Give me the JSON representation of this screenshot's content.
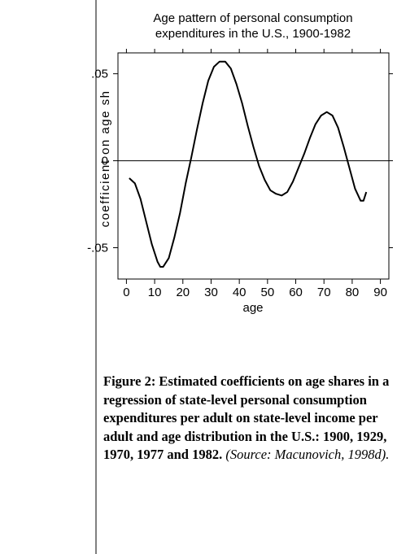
{
  "chart_data": {
    "type": "line",
    "title": [
      "Age pattern of personal consumption",
      "expenditures in the U.S., 1900-1982"
    ],
    "xlabel": "age",
    "ylabel": "coefficient on age sh",
    "xlim": [
      -3,
      93
    ],
    "xticks": [
      0,
      10,
      20,
      30,
      40,
      50,
      60,
      70,
      80,
      90
    ],
    "ylim": [
      -0.068,
      0.062
    ],
    "yticks": [
      {
        "value": 0.05,
        "label": ".05"
      },
      0,
      {
        "value": -0.05,
        "label": "-.05"
      }
    ],
    "reference_line": 0,
    "x": [
      1,
      3,
      5,
      7,
      9,
      11,
      12,
      13,
      15,
      17,
      19,
      21,
      23,
      25,
      27,
      29,
      31,
      33,
      35,
      37,
      39,
      41,
      43,
      45,
      47,
      49,
      51,
      53,
      55,
      57,
      59,
      61,
      63,
      65,
      67,
      69,
      71,
      73,
      75,
      77,
      79,
      81,
      83,
      84,
      85
    ],
    "series": [
      {
        "color": "#000000",
        "values": [
          -0.01,
          -0.013,
          -0.022,
          -0.035,
          -0.048,
          -0.058,
          -0.061,
          -0.061,
          -0.056,
          -0.044,
          -0.03,
          -0.013,
          0.002,
          0.018,
          0.033,
          0.046,
          0.054,
          0.057,
          0.057,
          0.053,
          0.044,
          0.033,
          0.02,
          0.008,
          -0.003,
          -0.011,
          -0.017,
          -0.019,
          -0.02,
          -0.018,
          -0.012,
          -0.004,
          0.004,
          0.013,
          0.021,
          0.026,
          0.028,
          0.026,
          0.019,
          0.008,
          -0.004,
          -0.016,
          -0.023,
          -0.023,
          -0.018
        ]
      }
    ]
  },
  "caption": {
    "text": "Figure 2: Estimated coefficients on age shares in a regression of state-level personal consumption expenditures per adult on state-level income per adult and age distribution in the U.S.: 1900, 1929, 1970, 1977 and 1982.",
    "source": "(Source: Macunovich, 1998d)."
  }
}
